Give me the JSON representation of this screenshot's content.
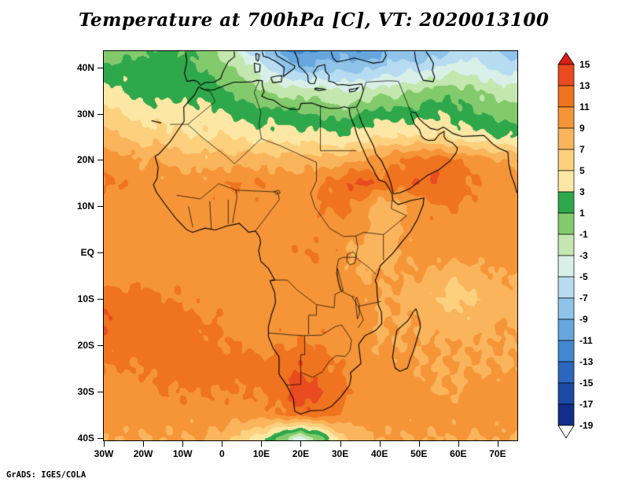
{
  "title": "Temperature at 700hPa [C], VT: 2020013100",
  "footer": "GrADS: IGES/COLA",
  "colors": {
    "background": "#ffffff",
    "frame": "#000000",
    "map_lines": "#000000"
  },
  "axes": {
    "lon_range": [
      -30,
      75
    ],
    "lat_range": [
      -40.5,
      43.5
    ],
    "lat_ticks": [
      {
        "label": "40N",
        "deg": 40
      },
      {
        "label": "30N",
        "deg": 30
      },
      {
        "label": "20N",
        "deg": 20
      },
      {
        "label": "10N",
        "deg": 10
      },
      {
        "label": "EQ",
        "deg": 0
      },
      {
        "label": "10S",
        "deg": -10
      },
      {
        "label": "20S",
        "deg": -20
      },
      {
        "label": "30S",
        "deg": -30
      },
      {
        "label": "40S",
        "deg": -40
      }
    ],
    "lon_ticks": [
      {
        "label": "30W",
        "deg": -30
      },
      {
        "label": "20W",
        "deg": -20
      },
      {
        "label": "10W",
        "deg": -10
      },
      {
        "label": "0",
        "deg": 0
      },
      {
        "label": "10E",
        "deg": 10
      },
      {
        "label": "20E",
        "deg": 20
      },
      {
        "label": "30E",
        "deg": 30
      },
      {
        "label": "40E",
        "deg": 40
      },
      {
        "label": "50E",
        "deg": 50
      },
      {
        "label": "60E",
        "deg": 60
      },
      {
        "label": "70E",
        "deg": 70
      }
    ]
  },
  "colorbar": {
    "tick_labels": [
      "15",
      "13",
      "11",
      "9",
      "7",
      "5",
      "3",
      "1",
      "-1",
      "-3",
      "-5",
      "-7",
      "-9",
      "-11",
      "-13",
      "-15",
      "-17",
      "-19"
    ]
  },
  "chart_data": {
    "type": "heatmap",
    "title": "Temperature at 700hPa [C], VT: 2020013100",
    "variable": "Temperature",
    "level": "700hPa",
    "units": "C",
    "valid_time": "2020013100",
    "contour_interval": 2,
    "levels": [
      15,
      13,
      11,
      9,
      7,
      5,
      3,
      1,
      -1,
      -3,
      -5,
      -7,
      -9,
      -11,
      -13,
      -15,
      -17,
      -19
    ],
    "palette": [
      "#d81e15",
      "#e94a1f",
      "#f0731f",
      "#f59538",
      "#fab55c",
      "#fdd07e",
      "#fde7a4",
      "#2fa84c",
      "#83ca6c",
      "#c3e7ae",
      "#d9f0e8",
      "#b7dcf2",
      "#8fc3e9",
      "#66a6dd",
      "#4287cf",
      "#2c67bd",
      "#1c4aa6",
      "#112f88",
      "#ffffff"
    ],
    "lons": [
      -30,
      -25,
      -20,
      -15,
      -10,
      -5,
      0,
      5,
      10,
      15,
      20,
      25,
      30,
      35,
      40,
      45,
      50,
      55,
      60,
      65,
      70,
      75
    ],
    "lats": [
      45,
      40,
      35,
      30,
      25,
      20,
      15,
      10,
      5,
      0,
      -5,
      -10,
      -15,
      -20,
      -25,
      -30,
      -35,
      -40
    ],
    "values": [
      [
        -1,
        -1,
        0,
        1,
        1,
        0,
        -2,
        -5,
        -8,
        -11,
        -13,
        -12,
        -10,
        -12,
        -11,
        -9,
        -10,
        -9,
        -8,
        -7,
        -8,
        -9
      ],
      [
        1,
        2,
        2,
        2,
        2,
        1,
        0,
        -2,
        -4,
        -7,
        -9,
        -8,
        -8,
        -8,
        -7,
        -6,
        -6,
        -5,
        -4,
        -4,
        -6,
        -6
      ],
      [
        4,
        3,
        2,
        2,
        2,
        2,
        1,
        0,
        -1,
        -2,
        -2,
        -2,
        -3,
        -3,
        -2,
        -2,
        -1,
        0,
        0,
        -1,
        -2,
        -2
      ],
      [
        6,
        5,
        4,
        4,
        4,
        4,
        3,
        2,
        2,
        2,
        1,
        1,
        0,
        1,
        2,
        2,
        2,
        3,
        2,
        1,
        0,
        0
      ],
      [
        8,
        7,
        6,
        6,
        5,
        5,
        5,
        5,
        4,
        4,
        4,
        4,
        3,
        4,
        5,
        5,
        5,
        5,
        4,
        4,
        3,
        3
      ],
      [
        10,
        10,
        9,
        9,
        8,
        8,
        8,
        8,
        8,
        8,
        8,
        8,
        8,
        9,
        10,
        11,
        12,
        12,
        11,
        10,
        9,
        9
      ],
      [
        11,
        11,
        10,
        10,
        10,
        10,
        11,
        11,
        11,
        10,
        10,
        11,
        12,
        14,
        12,
        12,
        13,
        13,
        12,
        11,
        10,
        10
      ],
      [
        10,
        10,
        10,
        10,
        10,
        10,
        10,
        10,
        10,
        10,
        10,
        11,
        12,
        10,
        8,
        8,
        10,
        11,
        11,
        10,
        10,
        10
      ],
      [
        10,
        10,
        10,
        10,
        10,
        10,
        10,
        10,
        10,
        10,
        10,
        10,
        10,
        10,
        8,
        9,
        10,
        10,
        10,
        10,
        10,
        10
      ],
      [
        10,
        10,
        10,
        10,
        10,
        10,
        10,
        10,
        10,
        10,
        11,
        11,
        10,
        8,
        8,
        9,
        10,
        10,
        10,
        10,
        10,
        10
      ],
      [
        10,
        10,
        10,
        10,
        10,
        10,
        10,
        10,
        10,
        10,
        10,
        10,
        10,
        9,
        9,
        9,
        9,
        8,
        7,
        8,
        9,
        9
      ],
      [
        12,
        12,
        12,
        11,
        11,
        10,
        10,
        10,
        10,
        10,
        10,
        10,
        10,
        10,
        9,
        9,
        8,
        7,
        6,
        7,
        8,
        8
      ],
      [
        13,
        12,
        12,
        12,
        12,
        11,
        11,
        10,
        10,
        10,
        10,
        10,
        10,
        10,
        9,
        9,
        9,
        8,
        8,
        8,
        9,
        9
      ],
      [
        12,
        12,
        12,
        12,
        12,
        12,
        11,
        11,
        10,
        11,
        11,
        11,
        10,
        10,
        9,
        9,
        9,
        9,
        9,
        9,
        9,
        9
      ],
      [
        11,
        11,
        11,
        12,
        12,
        12,
        12,
        12,
        12,
        12,
        13,
        12,
        11,
        10,
        10,
        10,
        9,
        9,
        9,
        9,
        9,
        9
      ],
      [
        10,
        10,
        10,
        11,
        11,
        11,
        11,
        11,
        11,
        12,
        15,
        13,
        12,
        10,
        10,
        10,
        10,
        9,
        9,
        10,
        10,
        10
      ],
      [
        10,
        10,
        10,
        10,
        10,
        10,
        10,
        10,
        10,
        11,
        12,
        12,
        11,
        10,
        10,
        10,
        10,
        10,
        10,
        10,
        10,
        10
      ],
      [
        9,
        9,
        9,
        9,
        9,
        9,
        8,
        6,
        4,
        0,
        -4,
        0,
        6,
        8,
        9,
        9,
        9,
        9,
        9,
        9,
        9,
        9
      ]
    ]
  }
}
